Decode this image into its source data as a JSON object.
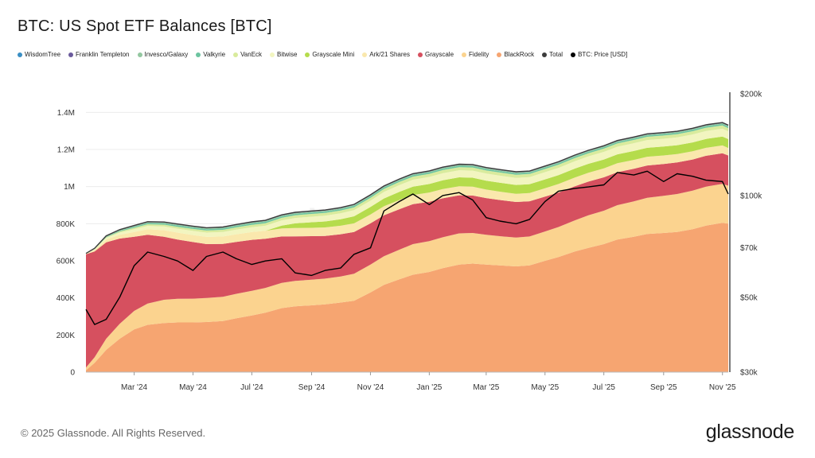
{
  "title": "BTC: US Spot ETF Balances [BTC]",
  "footer": {
    "copyright": "© 2025 Glassnode. All Rights Reserved.",
    "brand": "glassnode"
  },
  "watermark": "glassnode",
  "colors": {
    "WisdomTree": "#3a8fc4",
    "Franklin Templeton": "#6a5a9c",
    "Invesco/Galaxy": "#93c7a0",
    "Valkyrie": "#6cc4a0",
    "VanEck": "#d9eb9d",
    "Bitwise": "#f2f5c0",
    "Grayscale Mini": "#b5dc4c",
    "Ark/21 Shares": "#fae8ad",
    "Grayscale": "#d6505f",
    "Fidelity": "#fbd38f",
    "BlackRock": "#f6a571",
    "Total": "#3c3c3c",
    "BTC: Price [USD]": "#000000"
  },
  "chart_data": {
    "type": "area",
    "title": "BTC: US Spot ETF Balances [BTC]",
    "legend_position": "top-left",
    "grid": true,
    "x": [
      "2024-01-11",
      "2024-01-20",
      "2024-02-01",
      "2024-02-15",
      "2024-03-01",
      "2024-03-15",
      "2024-04-01",
      "2024-04-15",
      "2024-05-01",
      "2024-05-15",
      "2024-06-01",
      "2024-06-15",
      "2024-07-01",
      "2024-07-15",
      "2024-08-01",
      "2024-08-15",
      "2024-09-01",
      "2024-09-15",
      "2024-10-01",
      "2024-10-15",
      "2024-11-01",
      "2024-11-15",
      "2024-12-01",
      "2024-12-15",
      "2025-01-01",
      "2025-01-15",
      "2025-02-01",
      "2025-02-15",
      "2025-03-01",
      "2025-03-15",
      "2025-04-01",
      "2025-04-15",
      "2025-05-01",
      "2025-05-15",
      "2025-06-01",
      "2025-06-15",
      "2025-07-01",
      "2025-07-15",
      "2025-08-01",
      "2025-08-15",
      "2025-09-01",
      "2025-09-15",
      "2025-10-01",
      "2025-10-15",
      "2025-11-01",
      "2025-11-07"
    ],
    "x_ticks": [
      "Mar '24",
      "May '24",
      "Jul '24",
      "Sep '24",
      "Nov '24",
      "Jan '25",
      "Mar '25",
      "May '25",
      "Jul '25",
      "Sep '25",
      "Nov '25"
    ],
    "x_tick_dates": [
      "2024-03-01",
      "2024-05-01",
      "2024-07-01",
      "2024-09-01",
      "2024-11-01",
      "2025-01-01",
      "2025-03-01",
      "2025-05-01",
      "2025-07-01",
      "2025-09-01",
      "2025-11-01"
    ],
    "y_ticks": [
      "0",
      "200K",
      "400K",
      "600K",
      "800K",
      "1M",
      "1.2M",
      "1.4M"
    ],
    "ylim": [
      0,
      1500000
    ],
    "y2_ticks": [
      "$30k",
      "$50k",
      "$70k",
      "$100k",
      "$200k"
    ],
    "y2_tick_values": [
      30000,
      50000,
      70000,
      100000,
      200000
    ],
    "y2_scale": "log",
    "y2lim": [
      30000,
      200000
    ],
    "series": [
      {
        "name": "BlackRock",
        "values": [
          10000,
          50000,
          120000,
          180000,
          230000,
          255000,
          265000,
          268000,
          268000,
          270000,
          275000,
          290000,
          305000,
          320000,
          345000,
          355000,
          360000,
          365000,
          375000,
          385000,
          430000,
          470000,
          500000,
          525000,
          540000,
          560000,
          580000,
          585000,
          580000,
          575000,
          570000,
          575000,
          600000,
          620000,
          650000,
          670000,
          690000,
          715000,
          730000,
          745000,
          750000,
          755000,
          770000,
          790000,
          805000,
          800000
        ]
      },
      {
        "name": "Fidelity",
        "values": [
          15000,
          30000,
          60000,
          80000,
          100000,
          115000,
          125000,
          127000,
          128000,
          130000,
          131000,
          132000,
          133000,
          134000,
          136000,
          137000,
          138000,
          139000,
          140000,
          145000,
          150000,
          155000,
          160000,
          165000,
          166000,
          167000,
          168000,
          165000,
          160000,
          158000,
          155000,
          156000,
          158000,
          162000,
          168000,
          175000,
          180000,
          185000,
          190000,
          195000,
          200000,
          205000,
          208000,
          210000,
          210000,
          205000
        ]
      },
      {
        "name": "Grayscale",
        "values": [
          610000,
          570000,
          520000,
          460000,
          400000,
          370000,
          340000,
          320000,
          305000,
          290000,
          285000,
          280000,
          275000,
          265000,
          250000,
          240000,
          235000,
          230000,
          228000,
          225000,
          222000,
          220000,
          218000,
          215000,
          212000,
          210000,
          205000,
          202000,
          198000,
          195000,
          192000,
          190000,
          188000,
          186000,
          184000,
          182000,
          180000,
          178000,
          176000,
          174000,
          172000,
          170000,
          168000,
          166000,
          165000,
          163000
        ]
      },
      {
        "name": "Ark/21 Shares",
        "values": [
          2000,
          8000,
          15000,
          20000,
          25000,
          30000,
          35000,
          37000,
          38000,
          39000,
          40000,
          41000,
          42000,
          43000,
          44000,
          45000,
          45000,
          46000,
          46000,
          47000,
          48000,
          49000,
          50000,
          50000,
          50000,
          50000,
          49000,
          48000,
          46000,
          45000,
          44000,
          44000,
          45000,
          46000,
          47000,
          48000,
          48000,
          48000,
          48000,
          47000,
          46000,
          45000,
          44000,
          43000,
          42000,
          40000
        ]
      },
      {
        "name": "Grayscale Mini",
        "values": [
          0,
          0,
          0,
          0,
          0,
          0,
          0,
          0,
          0,
          0,
          0,
          0,
          0,
          0,
          15000,
          25000,
          30000,
          32000,
          35000,
          38000,
          40000,
          42000,
          44000,
          45000,
          46000,
          47000,
          48000,
          48000,
          48000,
          48000,
          48000,
          48000,
          48000,
          48000,
          48000,
          48000,
          48000,
          48000,
          48000,
          48000,
          48000,
          48000,
          48000,
          48000,
          48000,
          48000
        ]
      },
      {
        "name": "Bitwise",
        "values": [
          1000,
          4000,
          8000,
          12000,
          15000,
          18000,
          20000,
          21000,
          22000,
          23000,
          24000,
          25000,
          26000,
          27000,
          28000,
          29000,
          30000,
          31000,
          32000,
          33000,
          34000,
          35000,
          36000,
          37000,
          38000,
          38000,
          38000,
          38000,
          38000,
          38000,
          38000,
          38000,
          39000,
          39000,
          40000,
          40000,
          41000,
          41000,
          42000,
          42000,
          42000,
          42000,
          43000,
          43000,
          42000,
          42000
        ]
      },
      {
        "name": "VanEck",
        "values": [
          500,
          2000,
          4000,
          6000,
          8000,
          9000,
          10000,
          10500,
          11000,
          11500,
          12000,
          12500,
          13000,
          13500,
          14000,
          14500,
          15000,
          15000,
          15000,
          15500,
          16000,
          16500,
          17000,
          17000,
          17000,
          17000,
          17000,
          17000,
          17000,
          17000,
          17000,
          17000,
          17000,
          17000,
          17000,
          17000,
          17500,
          17500,
          17500,
          17500,
          17500,
          17500,
          17500,
          17500,
          17500,
          17500
        ]
      },
      {
        "name": "Valkyrie",
        "values": [
          500,
          1500,
          3000,
          4000,
          5000,
          6000,
          6500,
          7000,
          7000,
          7000,
          7500,
          7500,
          7500,
          7500,
          7500,
          7500,
          7500,
          7500,
          7500,
          7500,
          7500,
          7500,
          7500,
          7500,
          7500,
          7500,
          7500,
          7500,
          7500,
          7500,
          7500,
          7500,
          7500,
          7500,
          7500,
          7500,
          7500,
          7500,
          7500,
          7500,
          7500,
          7500,
          7500,
          7500,
          7500,
          7500
        ]
      },
      {
        "name": "Invesco/Galaxy",
        "values": [
          500,
          1500,
          3000,
          4000,
          4500,
          5000,
          5000,
          5000,
          5000,
          5000,
          5000,
          5000,
          5000,
          5000,
          5000,
          5000,
          5000,
          5000,
          5000,
          5000,
          5000,
          5000,
          5000,
          5000,
          5000,
          5000,
          5000,
          5000,
          5000,
          5000,
          5000,
          5000,
          5000,
          5000,
          5000,
          5000,
          5000,
          5000,
          5000,
          5000,
          5000,
          5000,
          5000,
          5000,
          5000,
          5000
        ]
      },
      {
        "name": "Franklin Templeton",
        "values": [
          200,
          500,
          1000,
          1500,
          2000,
          2000,
          2000,
          2000,
          2000,
          2000,
          2000,
          2000,
          2500,
          2500,
          2500,
          2500,
          2500,
          2500,
          2500,
          2500,
          2500,
          2500,
          2500,
          2500,
          2500,
          2500,
          2500,
          2500,
          2500,
          2500,
          2500,
          2500,
          2500,
          2500,
          2500,
          2500,
          2500,
          2500,
          2500,
          2500,
          2500,
          2500,
          2500,
          2500,
          2500,
          2500
        ]
      },
      {
        "name": "WisdomTree",
        "values": [
          100,
          200,
          400,
          500,
          600,
          700,
          800,
          800,
          800,
          800,
          800,
          800,
          800,
          800,
          800,
          800,
          800,
          800,
          800,
          800,
          800,
          800,
          800,
          800,
          800,
          800,
          800,
          800,
          800,
          800,
          800,
          800,
          800,
          800,
          800,
          800,
          800,
          800,
          800,
          800,
          800,
          800,
          800,
          800,
          800,
          800
        ]
      }
    ],
    "price": {
      "name": "BTC: Price [USD]",
      "values": [
        46000,
        41500,
        43000,
        50000,
        62000,
        68000,
        66000,
        64000,
        60000,
        66000,
        68000,
        65000,
        62500,
        64000,
        65000,
        59000,
        58000,
        60000,
        61000,
        67000,
        70000,
        90000,
        96000,
        101000,
        94000,
        100000,
        102000,
        97000,
        86000,
        84000,
        82500,
        85000,
        96000,
        103000,
        105000,
        106000,
        107500,
        117000,
        115000,
        118000,
        110000,
        116000,
        114000,
        111000,
        110000,
        101000
      ]
    }
  }
}
